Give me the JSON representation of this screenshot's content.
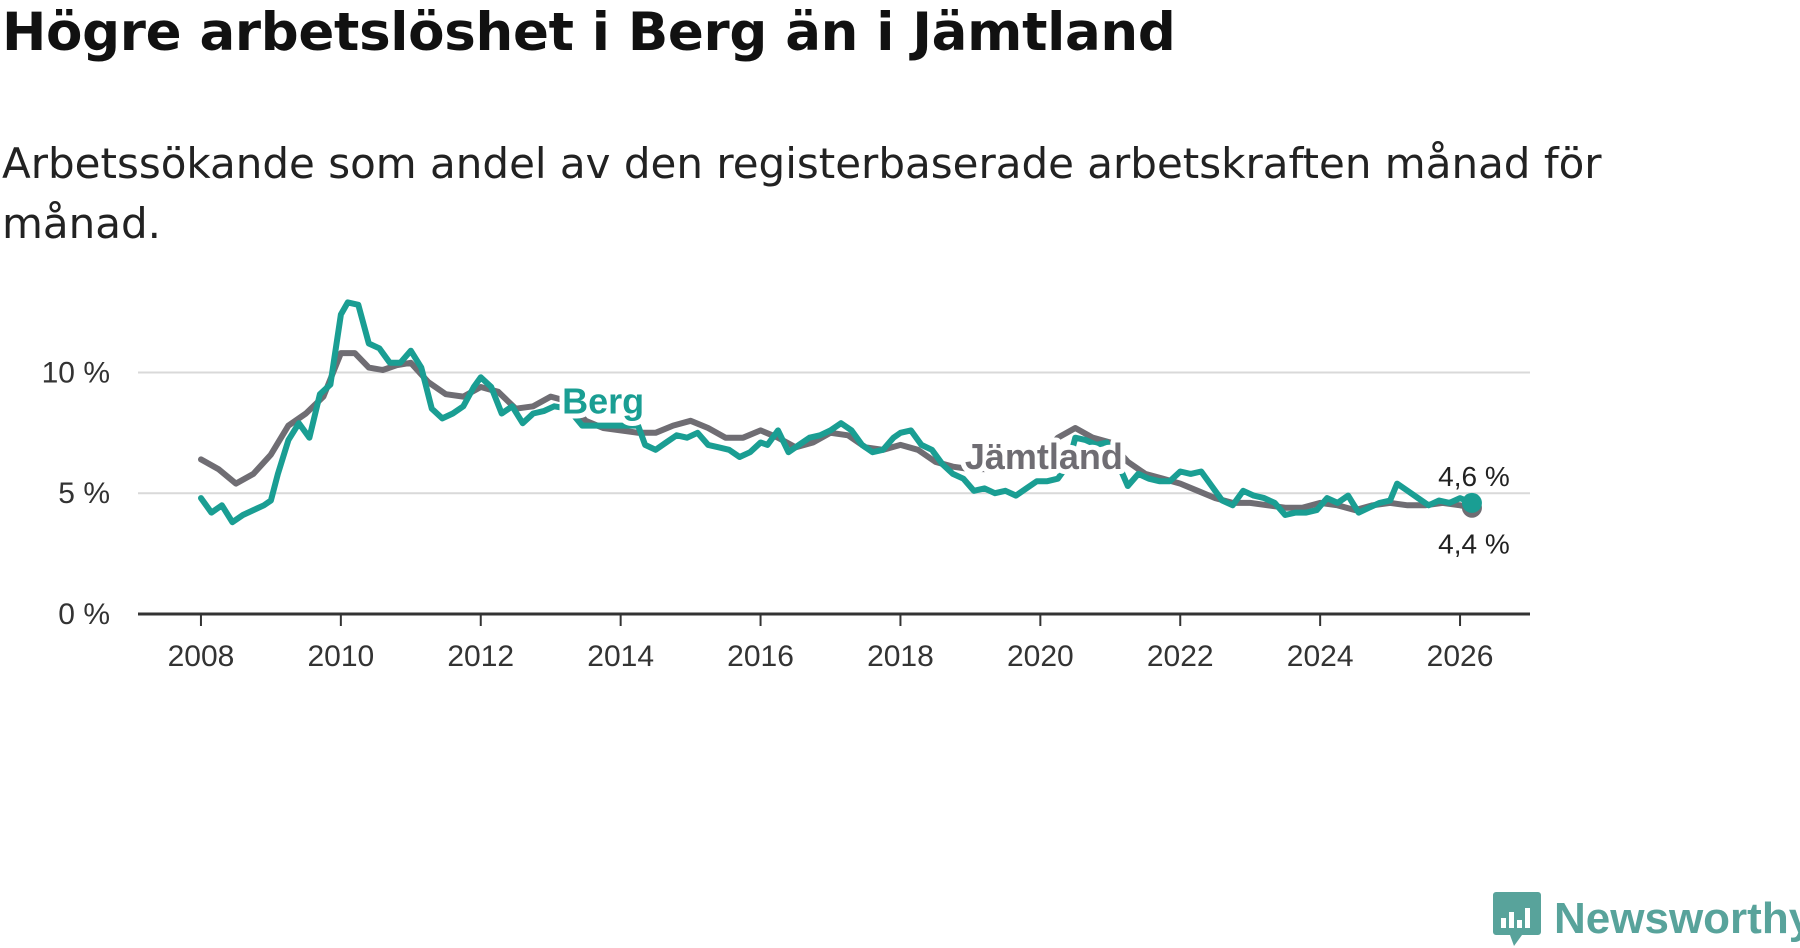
{
  "title": "Högre arbetslöshet i Berg än i Jämtland",
  "subtitle": "Arbetssökande som andel av den registerbaserade arbetskraften månad för månad.",
  "brand": {
    "name": "Newsworthy",
    "icon": "newsworthy-logo-icon"
  },
  "colors": {
    "berg": "#1a9e93",
    "jamtland": "#6f6d73",
    "grid": "#d9d9d9",
    "axis": "#333333",
    "brand": "#58a39b"
  },
  "chart_data": {
    "type": "line",
    "title": "Högre arbetslöshet i Berg än i Jämtland",
    "xlabel": "",
    "ylabel": "",
    "xlim": [
      2007.1,
      2027.0
    ],
    "ylim": [
      0,
      13
    ],
    "x_ticks": [
      2008,
      2010,
      2012,
      2014,
      2016,
      2018,
      2020,
      2022,
      2024,
      2026
    ],
    "x_tick_labels": [
      "2008",
      "2010",
      "2012",
      "2014",
      "2016",
      "2018",
      "2020",
      "2022",
      "2024",
      "2026"
    ],
    "y_ticks": [
      0,
      5,
      10
    ],
    "y_tick_labels": [
      "0 %",
      "5 %",
      "10 %"
    ],
    "grid": true,
    "series": [
      {
        "name": "Jämtland",
        "label": "Jämtland",
        "color": "#6f6d73",
        "end_label": "4,4 %",
        "points": [
          [
            2008.0,
            6.4
          ],
          [
            2008.25,
            6.0
          ],
          [
            2008.5,
            5.4
          ],
          [
            2008.75,
            5.8
          ],
          [
            2009.0,
            6.6
          ],
          [
            2009.25,
            7.8
          ],
          [
            2009.5,
            8.3
          ],
          [
            2009.75,
            9.0
          ],
          [
            2010.0,
            10.8
          ],
          [
            2010.2,
            10.8
          ],
          [
            2010.4,
            10.2
          ],
          [
            2010.6,
            10.1
          ],
          [
            2010.8,
            10.3
          ],
          [
            2011.0,
            10.4
          ],
          [
            2011.25,
            9.6
          ],
          [
            2011.5,
            9.1
          ],
          [
            2011.75,
            9.0
          ],
          [
            2012.0,
            9.4
          ],
          [
            2012.25,
            9.2
          ],
          [
            2012.5,
            8.5
          ],
          [
            2012.75,
            8.6
          ],
          [
            2013.0,
            9.0
          ],
          [
            2013.25,
            8.8
          ],
          [
            2013.5,
            8.0
          ],
          [
            2013.75,
            7.7
          ],
          [
            2014.0,
            7.6
          ],
          [
            2014.25,
            7.5
          ],
          [
            2014.5,
            7.5
          ],
          [
            2014.75,
            7.8
          ],
          [
            2015.0,
            8.0
          ],
          [
            2015.25,
            7.7
          ],
          [
            2015.5,
            7.3
          ],
          [
            2015.75,
            7.3
          ],
          [
            2016.0,
            7.6
          ],
          [
            2016.25,
            7.3
          ],
          [
            2016.5,
            6.9
          ],
          [
            2016.75,
            7.1
          ],
          [
            2017.0,
            7.5
          ],
          [
            2017.25,
            7.4
          ],
          [
            2017.5,
            6.9
          ],
          [
            2017.75,
            6.8
          ],
          [
            2018.0,
            7.0
          ],
          [
            2018.25,
            6.8
          ],
          [
            2018.5,
            6.3
          ],
          [
            2018.75,
            6.1
          ],
          [
            2019.0,
            6.0
          ],
          [
            2019.25,
            6.0
          ],
          [
            2019.5,
            6.1
          ],
          [
            2019.75,
            6.2
          ],
          [
            2020.0,
            6.5
          ],
          [
            2020.25,
            7.3
          ],
          [
            2020.5,
            7.7
          ],
          [
            2020.75,
            7.3
          ],
          [
            2021.0,
            7.1
          ],
          [
            2021.25,
            6.3
          ],
          [
            2021.5,
            5.8
          ],
          [
            2021.75,
            5.6
          ],
          [
            2022.0,
            5.4
          ],
          [
            2022.25,
            5.1
          ],
          [
            2022.5,
            4.8
          ],
          [
            2022.75,
            4.6
          ],
          [
            2023.0,
            4.6
          ],
          [
            2023.25,
            4.5
          ],
          [
            2023.5,
            4.4
          ],
          [
            2023.75,
            4.4
          ],
          [
            2024.0,
            4.6
          ],
          [
            2024.25,
            4.5
          ],
          [
            2024.5,
            4.3
          ],
          [
            2024.75,
            4.5
          ],
          [
            2025.0,
            4.6
          ],
          [
            2025.25,
            4.5
          ],
          [
            2025.5,
            4.5
          ],
          [
            2025.75,
            4.6
          ],
          [
            2026.0,
            4.5
          ],
          [
            2026.17,
            4.4
          ]
        ]
      },
      {
        "name": "Berg",
        "label": "Berg",
        "color": "#1a9e93",
        "end_label": "4,6 %",
        "points": [
          [
            2008.0,
            4.8
          ],
          [
            2008.15,
            4.2
          ],
          [
            2008.3,
            4.5
          ],
          [
            2008.45,
            3.8
          ],
          [
            2008.6,
            4.1
          ],
          [
            2008.75,
            4.3
          ],
          [
            2008.9,
            4.5
          ],
          [
            2009.0,
            4.7
          ],
          [
            2009.1,
            5.8
          ],
          [
            2009.25,
            7.2
          ],
          [
            2009.4,
            7.9
          ],
          [
            2009.55,
            7.3
          ],
          [
            2009.7,
            9.1
          ],
          [
            2009.85,
            9.5
          ],
          [
            2010.0,
            12.4
          ],
          [
            2010.1,
            12.9
          ],
          [
            2010.25,
            12.8
          ],
          [
            2010.4,
            11.2
          ],
          [
            2010.55,
            11.0
          ],
          [
            2010.7,
            10.4
          ],
          [
            2010.85,
            10.4
          ],
          [
            2011.0,
            10.9
          ],
          [
            2011.15,
            10.2
          ],
          [
            2011.3,
            8.5
          ],
          [
            2011.45,
            8.1
          ],
          [
            2011.6,
            8.3
          ],
          [
            2011.75,
            8.6
          ],
          [
            2011.9,
            9.4
          ],
          [
            2012.0,
            9.8
          ],
          [
            2012.15,
            9.4
          ],
          [
            2012.3,
            8.3
          ],
          [
            2012.45,
            8.6
          ],
          [
            2012.6,
            7.9
          ],
          [
            2012.75,
            8.3
          ],
          [
            2012.9,
            8.4
          ],
          [
            2013.05,
            8.6
          ],
          [
            2013.25,
            8.5
          ],
          [
            2013.45,
            7.8
          ],
          [
            2014.25,
            7.8
          ],
          [
            2014.35,
            7.0
          ],
          [
            2014.5,
            6.8
          ],
          [
            2014.65,
            7.1
          ],
          [
            2014.8,
            7.4
          ],
          [
            2014.95,
            7.3
          ],
          [
            2015.1,
            7.5
          ],
          [
            2015.25,
            7.0
          ],
          [
            2015.4,
            6.9
          ],
          [
            2015.55,
            6.8
          ],
          [
            2015.7,
            6.5
          ],
          [
            2015.85,
            6.7
          ],
          [
            2016.0,
            7.1
          ],
          [
            2016.1,
            7.0
          ],
          [
            2016.25,
            7.6
          ],
          [
            2016.4,
            6.7
          ],
          [
            2016.55,
            7.0
          ],
          [
            2016.7,
            7.3
          ],
          [
            2016.85,
            7.4
          ],
          [
            2017.0,
            7.6
          ],
          [
            2017.15,
            7.9
          ],
          [
            2017.3,
            7.6
          ],
          [
            2017.45,
            7.0
          ],
          [
            2017.6,
            6.7
          ],
          [
            2017.75,
            6.8
          ],
          [
            2017.9,
            7.3
          ],
          [
            2018.0,
            7.5
          ],
          [
            2018.15,
            7.6
          ],
          [
            2018.3,
            7.0
          ],
          [
            2018.45,
            6.8
          ],
          [
            2018.6,
            6.2
          ],
          [
            2018.75,
            5.8
          ],
          [
            2018.9,
            5.6
          ],
          [
            2019.05,
            5.1
          ],
          [
            2019.2,
            5.2
          ],
          [
            2019.35,
            5.0
          ],
          [
            2019.5,
            5.1
          ],
          [
            2019.65,
            4.9
          ],
          [
            2019.8,
            5.2
          ],
          [
            2019.95,
            5.5
          ],
          [
            2020.1,
            5.5
          ],
          [
            2020.25,
            5.6
          ],
          [
            2020.4,
            6.2
          ],
          [
            2020.5,
            7.3
          ],
          [
            2020.65,
            7.2
          ],
          [
            2020.8,
            7.0
          ],
          [
            2020.95,
            7.1
          ],
          [
            2021.1,
            6.3
          ],
          [
            2021.25,
            5.3
          ],
          [
            2021.4,
            5.8
          ],
          [
            2021.55,
            5.6
          ],
          [
            2021.7,
            5.5
          ],
          [
            2021.85,
            5.5
          ],
          [
            2022.0,
            5.9
          ],
          [
            2022.15,
            5.8
          ],
          [
            2022.3,
            5.9
          ],
          [
            2022.45,
            5.3
          ],
          [
            2022.6,
            4.7
          ],
          [
            2022.75,
            4.5
          ],
          [
            2022.9,
            5.1
          ],
          [
            2023.05,
            4.9
          ],
          [
            2023.2,
            4.8
          ],
          [
            2023.35,
            4.6
          ],
          [
            2023.5,
            4.1
          ],
          [
            2023.65,
            4.2
          ],
          [
            2023.8,
            4.2
          ],
          [
            2023.95,
            4.3
          ],
          [
            2024.1,
            4.8
          ],
          [
            2024.25,
            4.6
          ],
          [
            2024.4,
            4.9
          ],
          [
            2024.55,
            4.2
          ],
          [
            2024.7,
            4.4
          ],
          [
            2024.85,
            4.6
          ],
          [
            2025.0,
            4.7
          ],
          [
            2025.1,
            5.4
          ],
          [
            2025.25,
            5.1
          ],
          [
            2025.4,
            4.8
          ],
          [
            2025.55,
            4.5
          ],
          [
            2025.7,
            4.7
          ],
          [
            2025.85,
            4.6
          ],
          [
            2026.0,
            4.8
          ],
          [
            2026.17,
            4.6
          ]
        ]
      }
    ]
  }
}
